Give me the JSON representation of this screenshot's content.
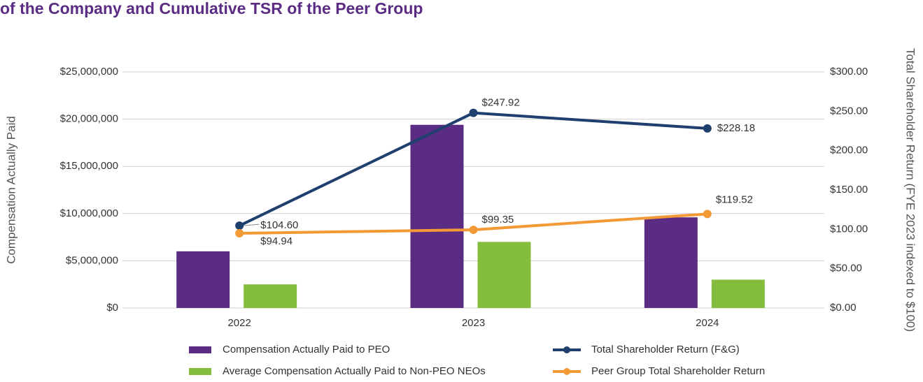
{
  "chart_data": {
    "type": "bar",
    "title": "of the Company and Cumulative TSR of the Peer Group",
    "ylabel": "Compensation Actually Paid",
    "y2label": "Total Shareholder Return (FYE 2023 indexed to $100)",
    "categories": [
      "2022",
      "2023",
      "2024"
    ],
    "series": [
      {
        "name": "Compensation Actually Paid to PEO",
        "color": "#5b2c83",
        "values": [
          6000000,
          19400000,
          9600000
        ]
      },
      {
        "name": "Average Compensation Actually Paid to Non-PEO NEOs",
        "color": "#84bd3e",
        "values": [
          2500000,
          7000000,
          3000000
        ]
      },
      {
        "name": "Total Shareholder Return (F&G)",
        "color": "#1f3f6e",
        "axis": "y2",
        "values": [
          104.6,
          247.92,
          228.18
        ],
        "value_labels": [
          "$104.60",
          "$247.92",
          "$228.18"
        ]
      },
      {
        "name": "Peer Group Total Shareholder Return",
        "color": "#f39a36",
        "axis": "y2",
        "values": [
          94.94,
          99.35,
          119.52
        ],
        "value_labels": [
          "$94.94",
          "$99.35",
          "$119.52"
        ]
      }
    ],
    "ylim": [
      0,
      25000000
    ],
    "yticks": [
      {
        "value": 0,
        "label": "$0"
      },
      {
        "value": 5000000,
        "label": "$5,000,000"
      },
      {
        "value": 10000000,
        "label": "$10,000,000"
      },
      {
        "value": 15000000,
        "label": "$15,000,000"
      },
      {
        "value": 20000000,
        "label": "$20,000,000"
      },
      {
        "value": 25000000,
        "label": "$25,000,000"
      }
    ],
    "y2lim": [
      0,
      300
    ],
    "y2ticks": [
      {
        "value": 0,
        "label": "$0.00"
      },
      {
        "value": 50,
        "label": "$50.00"
      },
      {
        "value": 100,
        "label": "$100.00"
      },
      {
        "value": 150,
        "label": "$150.00"
      },
      {
        "value": 200,
        "label": "$200.00"
      },
      {
        "value": 250,
        "label": "$250.00"
      },
      {
        "value": 300,
        "label": "$300.00"
      }
    ],
    "grid": true,
    "legend": "bottom"
  }
}
